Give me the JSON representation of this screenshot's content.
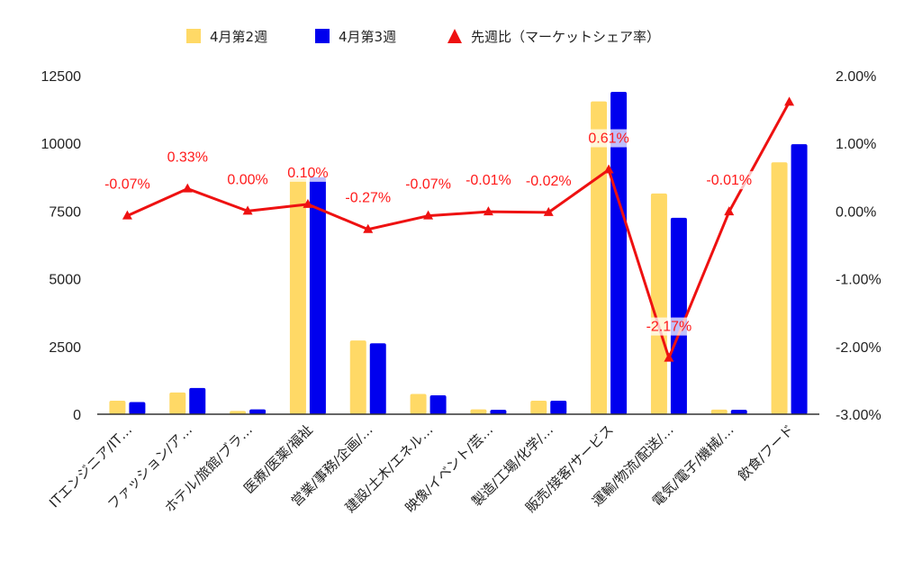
{
  "chart_data": {
    "type": "bar",
    "categories": [
      "ITエンジニア/IT…",
      "ファッション/ア…",
      "ホテル/旅館/ブラ…",
      "医療/医薬/福祉",
      "営業/事務/企画/…",
      "建設/土木/エネル…",
      "映像/イベント/芸…",
      "製造/工場/化学/…",
      "販売/接客/サービス",
      "運輸/物流/配送/…",
      "電気/電子/機械/…",
      "飲食/フード"
    ],
    "series": [
      {
        "name": "4月第2週",
        "type": "bar",
        "axis": "left",
        "color": "#ffd966",
        "values": [
          500,
          800,
          120,
          8700,
          2720,
          750,
          180,
          500,
          11550,
          8150,
          170,
          9300
        ]
      },
      {
        "name": "4月第3週",
        "type": "bar",
        "axis": "left",
        "color": "#0000ee",
        "values": [
          450,
          970,
          180,
          8750,
          2620,
          700,
          160,
          500,
          11900,
          7250,
          160,
          9970
        ]
      },
      {
        "name": "先週比（マーケットシェア率）",
        "type": "line",
        "axis": "right",
        "color": "#ee1111",
        "values": [
          -0.07,
          0.33,
          0.0,
          0.1,
          -0.27,
          -0.07,
          -0.01,
          -0.02,
          0.61,
          -2.17,
          -0.01,
          1.61
        ]
      }
    ],
    "data_labels": [
      "-0.07%",
      "0.33%",
      "0.00%",
      "0.10%",
      "-0.27%",
      "-0.07%",
      "-0.01%",
      "-0.02%",
      "0.61%",
      "-2.17%",
      "-0.01%",
      ""
    ],
    "y_left": {
      "ylim": [
        0,
        12500
      ],
      "ticks": [
        "0",
        "2500",
        "5000",
        "7500",
        "10000",
        "12500"
      ]
    },
    "y_right": {
      "ylim": [
        -3,
        2
      ],
      "ticks": [
        "-3.00%",
        "-2.00%",
        "-1.00%",
        "0.00%",
        "1.00%",
        "2.00%"
      ]
    },
    "grid": false,
    "legend": "top-center",
    "title": "",
    "xlabel": "",
    "ylabel": ""
  }
}
